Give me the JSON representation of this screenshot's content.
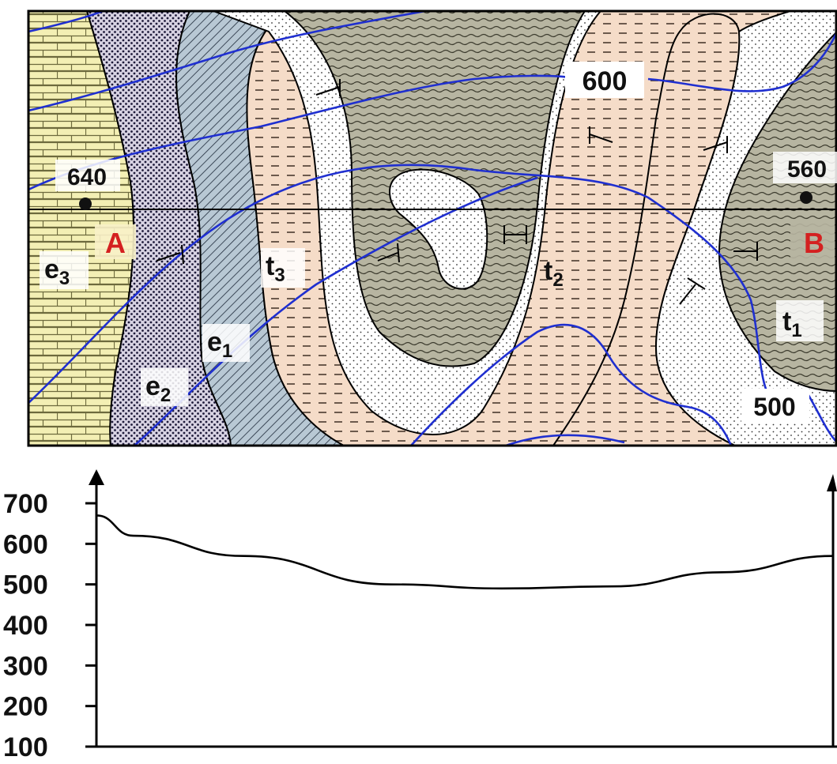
{
  "map": {
    "points": {
      "A": {
        "label": "A",
        "elevation": "640"
      },
      "B": {
        "label": "B",
        "elevation": "560"
      }
    },
    "contours": {
      "c600": "600",
      "c500": "500"
    },
    "units": {
      "e3": {
        "letter": "e",
        "sub": "3"
      },
      "e2": {
        "letter": "e",
        "sub": "2"
      },
      "e1": {
        "letter": "e",
        "sub": "1"
      },
      "t3": {
        "letter": "t",
        "sub": "3"
      },
      "t2": {
        "letter": "t",
        "sub": "2"
      },
      "t1": {
        "letter": "t",
        "sub": "1"
      }
    },
    "colors": {
      "contour": "#1f2fd0",
      "label_red": "#d42020",
      "e3_fill": "#f3efb4",
      "e2_fill": "#d8d3e3",
      "e1_fill": "#b8c8d4",
      "t3_fill": "#f5dcc8",
      "t2_fill": "#ffffff",
      "t1_fill": "#b7b5a1"
    }
  },
  "profile": {
    "y_ticks": [
      "700",
      "600",
      "500",
      "400",
      "300",
      "200",
      "100"
    ]
  },
  "chart_data": {
    "type": "line",
    "title": "",
    "xlabel": "",
    "ylabel": "",
    "ylim": [
      100,
      700
    ],
    "y_ticks": [
      700,
      600,
      500,
      400,
      300,
      200,
      100
    ],
    "series": [
      {
        "x": [
          0,
          0.05,
          0.2,
          0.4,
          0.55,
          0.7,
          0.85,
          1.0
        ],
        "values": [
          670,
          620,
          570,
          500,
          490,
          495,
          530,
          570
        ]
      }
    ]
  }
}
